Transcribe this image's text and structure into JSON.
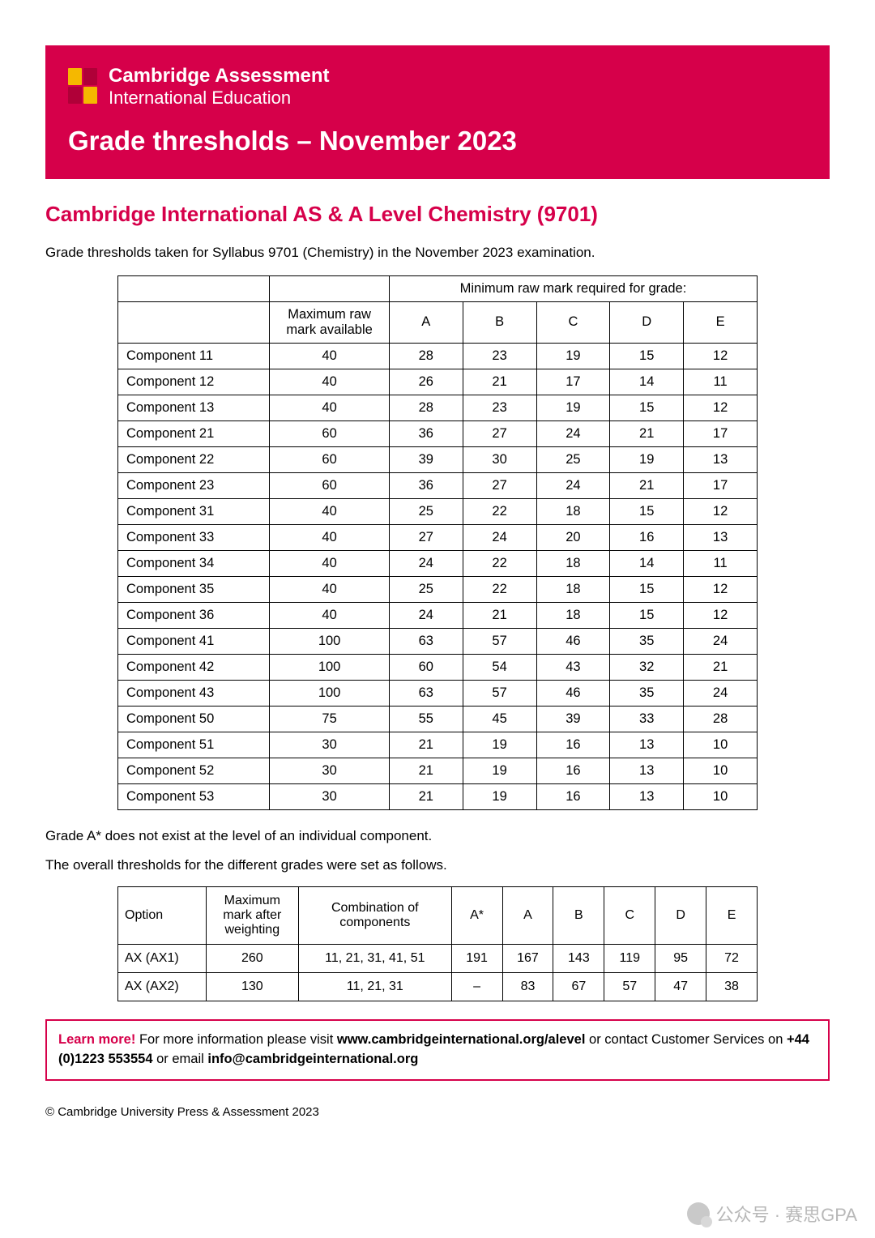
{
  "brand": {
    "line1": "Cambridge Assessment",
    "line2": "International Education"
  },
  "banner_title": "Grade thresholds – November 2023",
  "sub_title": "Cambridge International AS & A Level Chemistry (9701)",
  "intro": "Grade thresholds taken for Syllabus 9701 (Chemistry) in the November 2023 examination.",
  "table1": {
    "spanning_header": "Minimum raw mark required for grade:",
    "max_header": "Maximum raw mark available",
    "grade_cols": [
      "A",
      "B",
      "C",
      "D",
      "E"
    ],
    "rows": [
      {
        "label": "Component 11",
        "max": "40",
        "v": [
          "28",
          "23",
          "19",
          "15",
          "12"
        ]
      },
      {
        "label": "Component 12",
        "max": "40",
        "v": [
          "26",
          "21",
          "17",
          "14",
          "11"
        ]
      },
      {
        "label": "Component 13",
        "max": "40",
        "v": [
          "28",
          "23",
          "19",
          "15",
          "12"
        ]
      },
      {
        "label": "Component 21",
        "max": "60",
        "v": [
          "36",
          "27",
          "24",
          "21",
          "17"
        ]
      },
      {
        "label": "Component 22",
        "max": "60",
        "v": [
          "39",
          "30",
          "25",
          "19",
          "13"
        ]
      },
      {
        "label": "Component 23",
        "max": "60",
        "v": [
          "36",
          "27",
          "24",
          "21",
          "17"
        ]
      },
      {
        "label": "Component 31",
        "max": "40",
        "v": [
          "25",
          "22",
          "18",
          "15",
          "12"
        ]
      },
      {
        "label": "Component 33",
        "max": "40",
        "v": [
          "27",
          "24",
          "20",
          "16",
          "13"
        ]
      },
      {
        "label": "Component 34",
        "max": "40",
        "v": [
          "24",
          "22",
          "18",
          "14",
          "11"
        ]
      },
      {
        "label": "Component 35",
        "max": "40",
        "v": [
          "25",
          "22",
          "18",
          "15",
          "12"
        ]
      },
      {
        "label": "Component 36",
        "max": "40",
        "v": [
          "24",
          "21",
          "18",
          "15",
          "12"
        ]
      },
      {
        "label": "Component 41",
        "max": "100",
        "v": [
          "63",
          "57",
          "46",
          "35",
          "24"
        ]
      },
      {
        "label": "Component 42",
        "max": "100",
        "v": [
          "60",
          "54",
          "43",
          "32",
          "21"
        ]
      },
      {
        "label": "Component 43",
        "max": "100",
        "v": [
          "63",
          "57",
          "46",
          "35",
          "24"
        ]
      },
      {
        "label": "Component 50",
        "max": "75",
        "v": [
          "55",
          "45",
          "39",
          "33",
          "28"
        ]
      },
      {
        "label": "Component 51",
        "max": "30",
        "v": [
          "21",
          "19",
          "16",
          "13",
          "10"
        ]
      },
      {
        "label": "Component 52",
        "max": "30",
        "v": [
          "21",
          "19",
          "16",
          "13",
          "10"
        ]
      },
      {
        "label": "Component 53",
        "max": "30",
        "v": [
          "21",
          "19",
          "16",
          "13",
          "10"
        ]
      }
    ]
  },
  "note1": "Grade A* does not exist at the level of an individual component.",
  "note2": "The overall thresholds for the different grades were set as follows.",
  "table2": {
    "headers": {
      "option": "Option",
      "max": "Maximum mark after weighting",
      "comb": "Combination of components",
      "grades": [
        "A*",
        "A",
        "B",
        "C",
        "D",
        "E"
      ]
    },
    "rows": [
      {
        "opt": "AX (AX1)",
        "max": "260",
        "comb": "11, 21, 31, 41, 51",
        "v": [
          "191",
          "167",
          "143",
          "119",
          "95",
          "72"
        ]
      },
      {
        "opt": "AX (AX2)",
        "max": "130",
        "comb": "11, 21, 31",
        "v": [
          "–",
          "83",
          "67",
          "57",
          "47",
          "38"
        ]
      }
    ]
  },
  "learn": {
    "lead": "Learn more!",
    "t1": " For more information please visit ",
    "url": "www.cambridgeinternational.org/alevel",
    "t2": " or contact Customer Services on ",
    "phone": "+44 (0)1223 553554",
    "t3": " or email ",
    "email": "info@cambridgeinternational.org"
  },
  "copyright": "© Cambridge University Press & Assessment 2023",
  "watermark": "公众号 · 赛思GPA"
}
